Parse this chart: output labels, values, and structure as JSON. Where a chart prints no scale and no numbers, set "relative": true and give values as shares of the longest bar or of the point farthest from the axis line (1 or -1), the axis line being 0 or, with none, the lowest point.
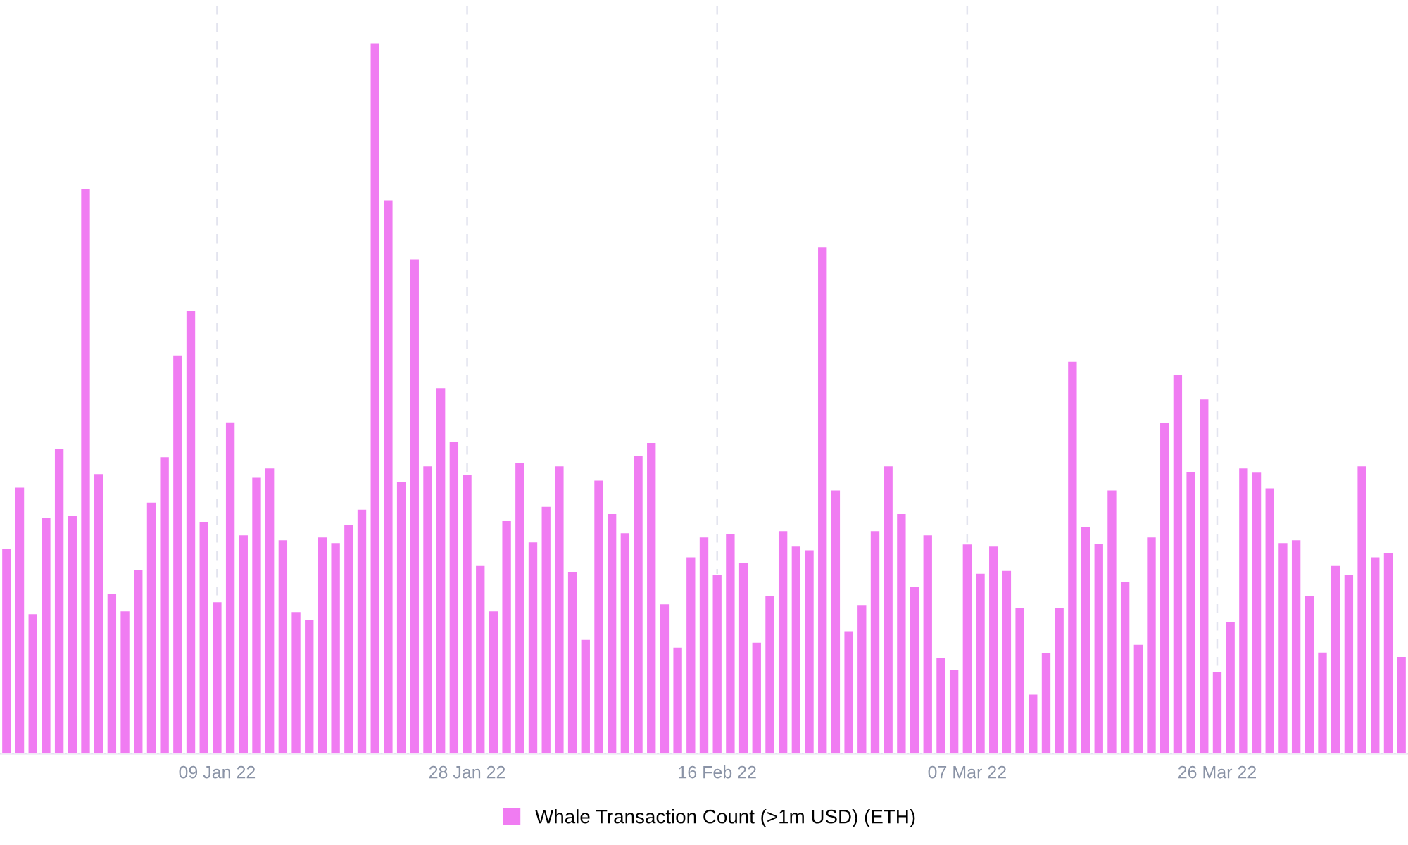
{
  "chart_data": {
    "type": "bar",
    "relative": true,
    "grid": true,
    "legend": "bottom",
    "x": [
      "2021-12-24",
      "2021-12-25",
      "2021-12-26",
      "2021-12-27",
      "2021-12-28",
      "2021-12-29",
      "2021-12-30",
      "2021-12-31",
      "2022-01-01",
      "2022-01-02",
      "2022-01-03",
      "2022-01-04",
      "2022-01-05",
      "2022-01-06",
      "2022-01-07",
      "2022-01-08",
      "2022-01-09",
      "2022-01-10",
      "2022-01-11",
      "2022-01-12",
      "2022-01-13",
      "2022-01-14",
      "2022-01-15",
      "2022-01-16",
      "2022-01-17",
      "2022-01-18",
      "2022-01-19",
      "2022-01-20",
      "2022-01-21",
      "2022-01-22",
      "2022-01-23",
      "2022-01-24",
      "2022-01-25",
      "2022-01-26",
      "2022-01-27",
      "2022-01-28",
      "2022-01-29",
      "2022-01-30",
      "2022-01-31",
      "2022-02-01",
      "2022-02-02",
      "2022-02-03",
      "2022-02-04",
      "2022-02-05",
      "2022-02-06",
      "2022-02-07",
      "2022-02-08",
      "2022-02-09",
      "2022-02-10",
      "2022-02-11",
      "2022-02-12",
      "2022-02-13",
      "2022-02-14",
      "2022-02-15",
      "2022-02-16",
      "2022-02-17",
      "2022-02-18",
      "2022-02-19",
      "2022-02-20",
      "2022-02-21",
      "2022-02-22",
      "2022-02-23",
      "2022-02-24",
      "2022-02-25",
      "2022-02-26",
      "2022-02-27",
      "2022-02-28",
      "2022-03-01",
      "2022-03-02",
      "2022-03-03",
      "2022-03-04",
      "2022-03-05",
      "2022-03-06",
      "2022-03-07",
      "2022-03-08",
      "2022-03-09",
      "2022-03-10",
      "2022-03-11",
      "2022-03-12",
      "2022-03-13",
      "2022-03-14",
      "2022-03-15",
      "2022-03-16",
      "2022-03-17",
      "2022-03-18",
      "2022-03-19",
      "2022-03-20",
      "2022-03-21",
      "2022-03-22",
      "2022-03-23",
      "2022-03-24",
      "2022-03-25",
      "2022-03-26",
      "2022-03-27",
      "2022-03-28",
      "2022-03-29",
      "2022-03-30",
      "2022-03-31",
      "2022-04-01",
      "2022-04-02",
      "2022-04-03",
      "2022-04-04",
      "2022-04-05",
      "2022-04-06",
      "2022-04-07",
      "2022-04-08",
      "2022-04-09"
    ],
    "xlim": [
      "2021-12-23T12:00",
      "2022-04-09T12:00"
    ],
    "xticks": [
      {
        "value": "2022-01-09",
        "label": "09 Jan 22"
      },
      {
        "value": "2022-01-28",
        "label": "28 Jan 22"
      },
      {
        "value": "2022-02-16",
        "label": "16 Feb 22"
      },
      {
        "value": "2022-03-07",
        "label": "07 Mar 22"
      },
      {
        "value": "2022-03-26",
        "label": "26 Mar 22"
      }
    ],
    "series": [
      {
        "name": "Whale Transaction Count (>1m USD) (ETH)",
        "color": "#f07cf2",
        "values": [
          0.289,
          0.375,
          0.197,
          0.332,
          0.43,
          0.335,
          0.795,
          0.394,
          0.225,
          0.201,
          0.259,
          0.354,
          0.418,
          0.561,
          0.623,
          0.326,
          0.214,
          0.467,
          0.308,
          0.389,
          0.402,
          0.301,
          0.2,
          0.189,
          0.305,
          0.297,
          0.323,
          0.344,
          1,
          0.779,
          0.383,
          0.696,
          0.405,
          0.515,
          0.439,
          0.393,
          0.265,
          0.201,
          0.328,
          0.41,
          0.298,
          0.348,
          0.405,
          0.256,
          0.161,
          0.385,
          0.338,
          0.311,
          0.42,
          0.438,
          0.211,
          0.15,
          0.277,
          0.305,
          0.252,
          0.31,
          0.269,
          0.157,
          0.222,
          0.314,
          0.292,
          0.287,
          0.713,
          0.371,
          0.173,
          0.21,
          0.314,
          0.405,
          0.338,
          0.235,
          0.308,
          0.135,
          0.119,
          0.295,
          0.254,
          0.292,
          0.258,
          0.206,
          0.084,
          0.142,
          0.206,
          0.552,
          0.32,
          0.296,
          0.371,
          0.242,
          0.154,
          0.305,
          0.466,
          0.534,
          0.397,
          0.499,
          0.115,
          0.186,
          0.402,
          0.396,
          0.374,
          0.297,
          0.301,
          0.222,
          0.143,
          0.265,
          0.252,
          0.405,
          0.277,
          0.283,
          0.137
        ]
      }
    ]
  }
}
